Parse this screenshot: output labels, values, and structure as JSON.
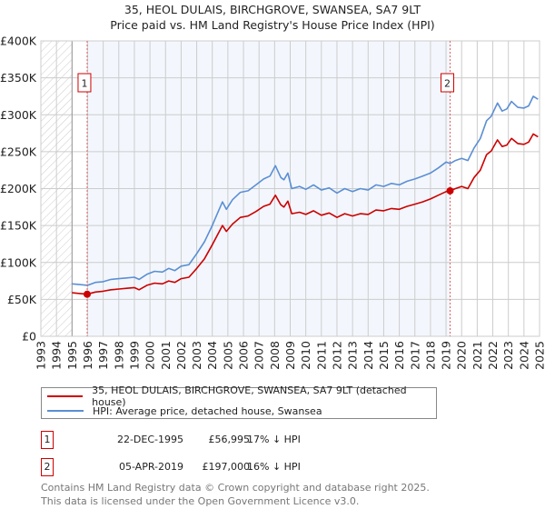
{
  "title": "35, HEOL DULAIS, BIRCHGROVE, SWANSEA, SA7 9LT",
  "subtitle": "Price paid vs. HM Land Registry's House Price Index (HPI)",
  "colors": {
    "property": "#cc0000",
    "hpi": "#5b8fd4",
    "shade": "#f3f7fd"
  },
  "chart_data": {
    "type": "line",
    "xlim": [
      1993,
      2025
    ],
    "ylim": [
      0,
      400000
    ],
    "yticks": [
      0,
      50000,
      100000,
      150000,
      200000,
      250000,
      300000,
      350000,
      400000
    ],
    "ytick_labels": [
      "£0",
      "£50K",
      "£100K",
      "£150K",
      "£200K",
      "£250K",
      "£300K",
      "£350K",
      "£400K"
    ],
    "xticks": [
      "1993",
      "1994",
      "1995",
      "1996",
      "1997",
      "1998",
      "1999",
      "2000",
      "2001",
      "2002",
      "2003",
      "2004",
      "2005",
      "2006",
      "2007",
      "2008",
      "2009",
      "2010",
      "2011",
      "2012",
      "2013",
      "2014",
      "2015",
      "2016",
      "2017",
      "2018",
      "2019",
      "2020",
      "2021",
      "2022",
      "2023",
      "2024",
      "2025"
    ],
    "grid": true,
    "hatched_range": [
      1993,
      1995
    ],
    "shaded_range": [
      1995.97,
      2019.26
    ],
    "series": [
      {
        "name": "35, HEOL DULAIS, BIRCHGROVE, SWANSEA, SA7 9LT (detached house)",
        "color": "#cc0000",
        "points": [
          [
            1995.0,
            59
          ],
          [
            1995.5,
            58
          ],
          [
            1995.97,
            57
          ],
          [
            1996.5,
            60
          ],
          [
            1997,
            61
          ],
          [
            1997.5,
            63
          ],
          [
            1998,
            64
          ],
          [
            1998.5,
            65
          ],
          [
            1999,
            66
          ],
          [
            1999.3,
            63
          ],
          [
            1999.8,
            69
          ],
          [
            2000.3,
            72
          ],
          [
            2000.8,
            71
          ],
          [
            2001.2,
            75
          ],
          [
            2001.6,
            73
          ],
          [
            2002,
            78
          ],
          [
            2002.5,
            80
          ],
          [
            2003,
            92
          ],
          [
            2003.5,
            105
          ],
          [
            2004,
            124
          ],
          [
            2004.4,
            140
          ],
          [
            2004.65,
            150
          ],
          [
            2004.9,
            142
          ],
          [
            2005.3,
            152
          ],
          [
            2005.8,
            161
          ],
          [
            2006.3,
            163
          ],
          [
            2006.8,
            169
          ],
          [
            2007.3,
            176
          ],
          [
            2007.7,
            179
          ],
          [
            2008.05,
            191
          ],
          [
            2008.4,
            178
          ],
          [
            2008.6,
            175
          ],
          [
            2008.85,
            183
          ],
          [
            2009.1,
            166
          ],
          [
            2009.6,
            168
          ],
          [
            2010,
            165
          ],
          [
            2010.5,
            170
          ],
          [
            2011,
            164
          ],
          [
            2011.5,
            167
          ],
          [
            2012,
            161
          ],
          [
            2012.5,
            166
          ],
          [
            2013,
            163
          ],
          [
            2013.5,
            166
          ],
          [
            2014,
            165
          ],
          [
            2014.5,
            171
          ],
          [
            2015,
            170
          ],
          [
            2015.5,
            173
          ],
          [
            2016,
            172
          ],
          [
            2016.5,
            176
          ],
          [
            2017,
            179
          ],
          [
            2017.5,
            182
          ],
          [
            2018,
            186
          ],
          [
            2018.5,
            191
          ],
          [
            2019,
            196
          ],
          [
            2019.26,
            197
          ],
          [
            2019.6,
            200
          ],
          [
            2020,
            203
          ],
          [
            2020.4,
            200
          ],
          [
            2020.8,
            215
          ],
          [
            2021.2,
            225
          ],
          [
            2021.6,
            246
          ],
          [
            2021.9,
            251
          ],
          [
            2022.3,
            266
          ],
          [
            2022.6,
            257
          ],
          [
            2022.9,
            259
          ],
          [
            2023.2,
            268
          ],
          [
            2023.6,
            261
          ],
          [
            2024,
            260
          ],
          [
            2024.3,
            263
          ],
          [
            2024.6,
            274
          ],
          [
            2024.9,
            270
          ]
        ]
      },
      {
        "name": "HPI: Average price, detached house, Swansea",
        "color": "#5b8fd4",
        "points": [
          [
            1995.0,
            71
          ],
          [
            1995.5,
            70
          ],
          [
            1996.0,
            69
          ],
          [
            1996.5,
            73
          ],
          [
            1997,
            74
          ],
          [
            1997.5,
            77
          ],
          [
            1998,
            78
          ],
          [
            1998.5,
            79
          ],
          [
            1999,
            80
          ],
          [
            1999.3,
            77
          ],
          [
            1999.8,
            84
          ],
          [
            2000.3,
            88
          ],
          [
            2000.8,
            87
          ],
          [
            2001.2,
            92
          ],
          [
            2001.6,
            89
          ],
          [
            2002,
            95
          ],
          [
            2002.5,
            97
          ],
          [
            2003,
            112
          ],
          [
            2003.5,
            128
          ],
          [
            2004,
            150
          ],
          [
            2004.4,
            170
          ],
          [
            2004.65,
            182
          ],
          [
            2004.9,
            172
          ],
          [
            2005.3,
            185
          ],
          [
            2005.8,
            195
          ],
          [
            2006.3,
            197
          ],
          [
            2006.8,
            205
          ],
          [
            2007.3,
            213
          ],
          [
            2007.7,
            217
          ],
          [
            2008.05,
            231
          ],
          [
            2008.4,
            215
          ],
          [
            2008.6,
            212
          ],
          [
            2008.85,
            221
          ],
          [
            2009.1,
            200
          ],
          [
            2009.6,
            203
          ],
          [
            2010,
            199
          ],
          [
            2010.5,
            205
          ],
          [
            2011,
            198
          ],
          [
            2011.5,
            201
          ],
          [
            2012,
            194
          ],
          [
            2012.5,
            200
          ],
          [
            2013,
            196
          ],
          [
            2013.5,
            200
          ],
          [
            2014,
            198
          ],
          [
            2014.5,
            205
          ],
          [
            2015,
            203
          ],
          [
            2015.5,
            207
          ],
          [
            2016,
            205
          ],
          [
            2016.5,
            210
          ],
          [
            2017,
            213
          ],
          [
            2017.5,
            217
          ],
          [
            2018,
            221
          ],
          [
            2018.5,
            228
          ],
          [
            2019,
            236
          ],
          [
            2019.26,
            234
          ],
          [
            2019.6,
            238
          ],
          [
            2020,
            241
          ],
          [
            2020.4,
            238
          ],
          [
            2020.8,
            255
          ],
          [
            2021.2,
            268
          ],
          [
            2021.6,
            292
          ],
          [
            2021.9,
            298
          ],
          [
            2022.3,
            316
          ],
          [
            2022.6,
            305
          ],
          [
            2022.9,
            308
          ],
          [
            2023.2,
            318
          ],
          [
            2023.6,
            310
          ],
          [
            2024,
            309
          ],
          [
            2024.3,
            312
          ],
          [
            2024.6,
            325
          ],
          [
            2024.9,
            321
          ]
        ]
      }
    ],
    "value_unit": "thousands GBP for points",
    "sales": [
      {
        "label": "1",
        "x": 1995.97,
        "y": 56995
      },
      {
        "label": "2",
        "x": 2019.26,
        "y": 197000
      }
    ]
  },
  "legend": {
    "property": "35, HEOL DULAIS, BIRCHGROVE, SWANSEA, SA7 9LT (detached house)",
    "hpi": "HPI: Average price, detached house, Swansea"
  },
  "transactions": [
    {
      "num": "1",
      "date": "22-DEC-1995",
      "price": "£56,995",
      "hpi": "17% ↓ HPI"
    },
    {
      "num": "2",
      "date": "05-APR-2019",
      "price": "£197,000",
      "hpi": "16% ↓ HPI"
    }
  ],
  "footer": [
    "Contains HM Land Registry data © Crown copyright and database right 2025.",
    "This data is licensed under the Open Government Licence v3.0."
  ]
}
